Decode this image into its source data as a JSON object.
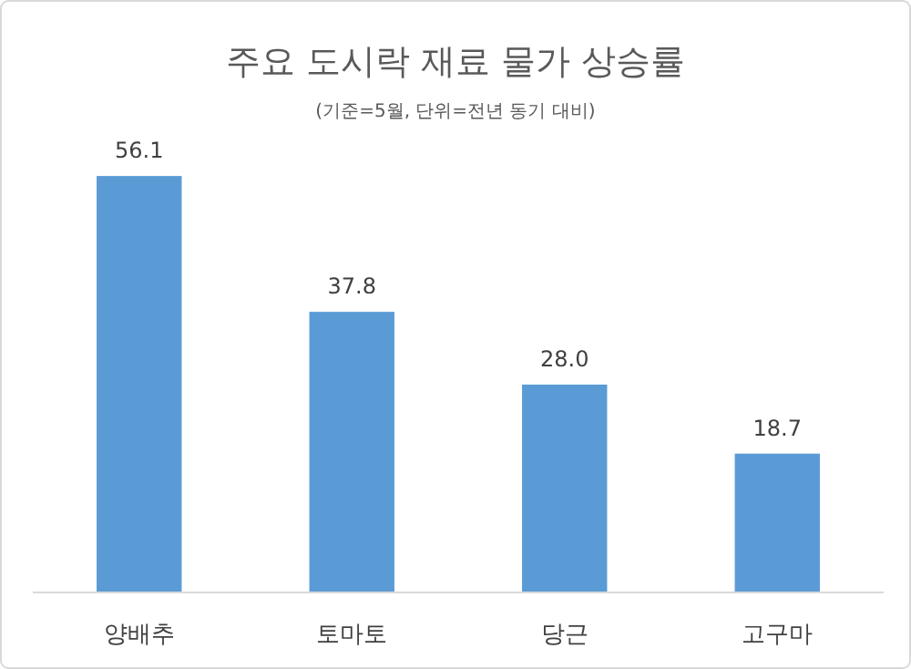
{
  "chart_data": {
    "type": "bar",
    "title": "주요 도시락 재료 물가 상승률",
    "subtitle": "(기준=5월, 단위=전년 동기 대비)",
    "categories": [
      "양배추",
      "토마토",
      "당근",
      "고구마"
    ],
    "values": [
      56.1,
      37.8,
      28.0,
      18.7
    ],
    "value_labels": [
      "56.1",
      "37.8",
      "28.0",
      "18.7"
    ],
    "color": "#5b9bd5"
  }
}
